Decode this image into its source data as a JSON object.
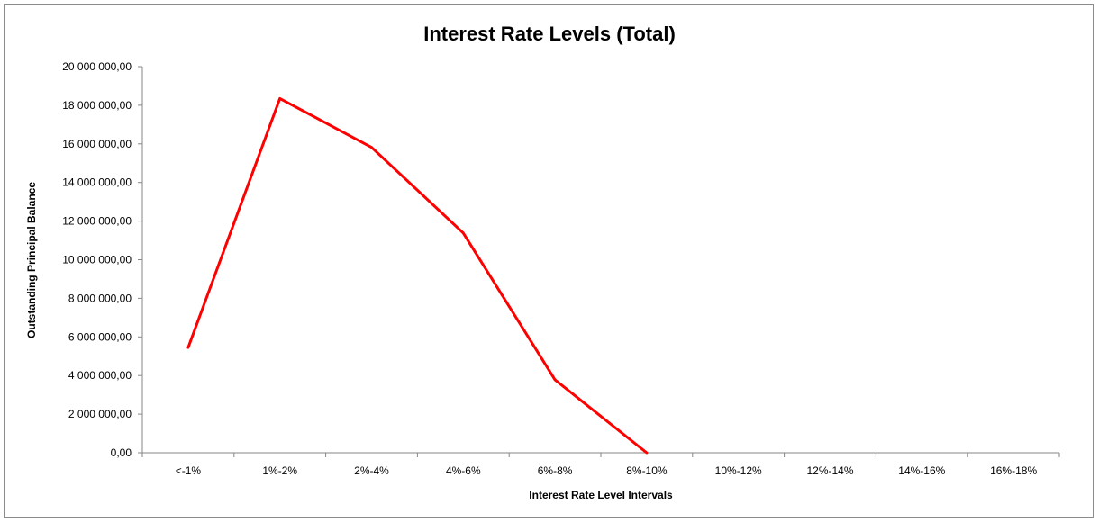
{
  "chart_data": {
    "type": "line",
    "title": "Interest Rate Levels (Total)",
    "xlabel": "Interest Rate Level Intervals",
    "ylabel": "Outstanding Principal Balance",
    "categories": [
      "<-1%",
      "1%-2%",
      "2%-4%",
      "4%-6%",
      "6%-8%",
      "8%-10%",
      "10%-12%",
      "12%-14%",
      "14%-16%",
      "16%-18%"
    ],
    "series": [
      {
        "values": [
          5450000,
          18350000,
          15820000,
          11380000,
          3780000,
          0,
          null,
          null,
          null,
          null
        ],
        "color": "#ff0000"
      }
    ],
    "ylim": [
      0,
      20000000
    ],
    "yticks": [
      0,
      2000000,
      4000000,
      6000000,
      8000000,
      10000000,
      12000000,
      14000000,
      16000000,
      18000000,
      20000000
    ],
    "ytick_labels": [
      "0,00",
      "2 000 000,00",
      "4 000 000,00",
      "6 000 000,00",
      "8 000 000,00",
      "10 000 000,00",
      "12 000 000,00",
      "14 000 000,00",
      "16 000 000,00",
      "18 000 000,00",
      "20 000 000,00"
    ],
    "grid": false,
    "legend": "none"
  }
}
